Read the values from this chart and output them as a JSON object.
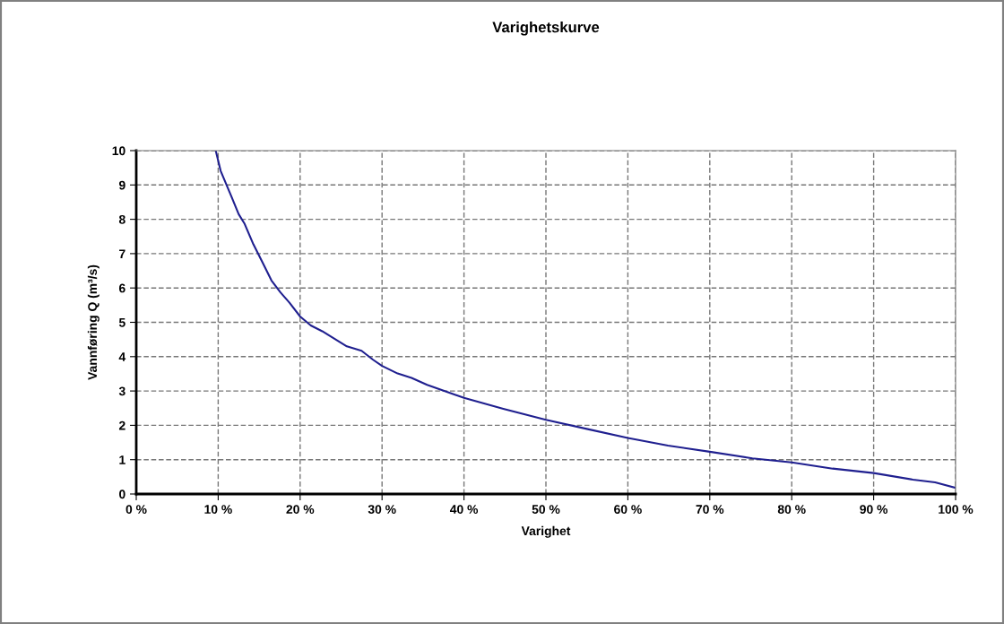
{
  "chart_data": {
    "type": "line",
    "title": "Varighetskurve",
    "xlabel": "Varighet",
    "ylabel": "Vannføring Q (m³/s)",
    "xlim": [
      0,
      100
    ],
    "ylim": [
      0,
      10
    ],
    "xticks": [
      {
        "value": 0,
        "label": "0 %"
      },
      {
        "value": 10,
        "label": "10 %"
      },
      {
        "value": 20,
        "label": "20 %"
      },
      {
        "value": 30,
        "label": "30 %"
      },
      {
        "value": 40,
        "label": "40 %"
      },
      {
        "value": 50,
        "label": "50 %"
      },
      {
        "value": 60,
        "label": "60 %"
      },
      {
        "value": 70,
        "label": "70 %"
      },
      {
        "value": 80,
        "label": "80 %"
      },
      {
        "value": 90,
        "label": "90 %"
      },
      {
        "value": 100,
        "label": "100 %"
      }
    ],
    "yticks": [
      0,
      1,
      2,
      3,
      4,
      5,
      6,
      7,
      8,
      9,
      10
    ],
    "grid": true,
    "marker": "none",
    "line_style": "solid",
    "series": [
      {
        "color": "#1f1f8f",
        "x": [
          9.7,
          10.3,
          11.6,
          12.5,
          13.2,
          14.3,
          15.4,
          16.5,
          17.6,
          18.7,
          20.0,
          21.3,
          22.7,
          24.2,
          25.7,
          27.5,
          28.9,
          30.0,
          31.9,
          33.6,
          35.5,
          40,
          44.8,
          50,
          55.1,
          60,
          64.9,
          70,
          75.2,
          80,
          85,
          90,
          94.8,
          97.5,
          100
        ],
        "values": [
          10.0,
          9.41,
          8.67,
          8.15,
          7.88,
          7.27,
          6.75,
          6.22,
          5.87,
          5.57,
          5.17,
          4.91,
          4.74,
          4.52,
          4.3,
          4.17,
          3.91,
          3.73,
          3.51,
          3.38,
          3.18,
          2.8,
          2.48,
          2.16,
          1.89,
          1.63,
          1.41,
          1.23,
          1.04,
          0.92,
          0.74,
          0.61,
          0.42,
          0.34,
          0.18
        ]
      }
    ]
  }
}
